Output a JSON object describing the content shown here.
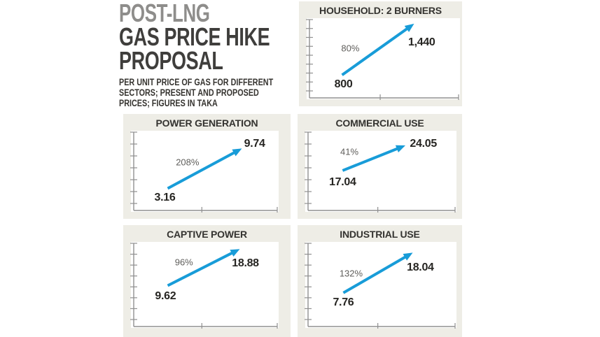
{
  "header": {
    "kicker": "POST-LNG",
    "title_line1": "GAS PRICE HIKE",
    "title_line2": "PROPOSAL",
    "subtitle_line1": "PER UNIT PRICE OF GAS FOR DIFFERENT",
    "subtitle_line2": "SECTORS; PRESENT AND PROPOSED",
    "subtitle_line3": "PRICES; FIGURES IN TAKA"
  },
  "colors": {
    "arrow": "#189cd8",
    "card_bg": "#eeede6",
    "axis": "#909090",
    "kicker_text": "#8e8d8b",
    "title_text": "#3f3e3c",
    "value_text": "#262522",
    "pct_text": "#5f5e5b"
  },
  "chart_data": [
    {
      "type": "line",
      "title": "HOUSEHOLD: 2 BURNERS",
      "present_price": 800,
      "proposed_price": 1440,
      "increase_pct": 80,
      "start_label": "800",
      "end_label": "1,440",
      "pct_label": "80%",
      "unit": "Taka",
      "ticks_left": 9,
      "arrow": {
        "x1": 23.1,
        "y1": 70.0,
        "x2": 70.1,
        "y2": 6.8
      },
      "labels": {
        "start": {
          "x": 24.0,
          "y": 82.0
        },
        "end": {
          "x": 75.0,
          "y": 30.0
        },
        "pct": {
          "x": 28.5,
          "y": 37.0
        }
      }
    },
    {
      "type": "line",
      "title": "POWER GENERATION",
      "present_price": 3.16,
      "proposed_price": 9.74,
      "increase_pct": 208,
      "start_label": "3.16",
      "end_label": "9.74",
      "pct_label": "208%",
      "unit": "Taka",
      "ticks_left": 7,
      "arrow": {
        "x1": 24.9,
        "y1": 71.1,
        "x2": 75.1,
        "y2": 21.9
      },
      "labels": {
        "start": {
          "x": 23.0,
          "y": 82.5
        },
        "end": {
          "x": 83.7,
          "y": 16.7
        },
        "pct": {
          "x": 38.3,
          "y": 38.6
        }
      }
    },
    {
      "type": "line",
      "title": "COMMERCIAL USE",
      "present_price": 17.04,
      "proposed_price": 24.05,
      "increase_pct": 41,
      "start_label": "17.04",
      "end_label": "24.05",
      "pct_label": "41%",
      "unit": "Taka",
      "ticks_left": 7,
      "arrow": {
        "x1": 24.7,
        "y1": 49.1,
        "x2": 66.2,
        "y2": 18.1
      },
      "labels": {
        "start": {
          "x": 24.7,
          "y": 63.8
        },
        "end": {
          "x": 78.1,
          "y": 16.4
        },
        "pct": {
          "x": 29.2,
          "y": 25.9
        }
      }
    },
    {
      "type": "line",
      "title": "CAPTIVE POWER",
      "present_price": 9.62,
      "proposed_price": 18.88,
      "increase_pct": 96,
      "start_label": "9.62",
      "end_label": "18.88",
      "pct_label": "96%",
      "unit": "Taka",
      "ticks_left": 8,
      "arrow": {
        "x1": 24.9,
        "y1": 50.8,
        "x2": 73.7,
        "y2": 8.3
      },
      "labels": {
        "start": {
          "x": 23.4,
          "y": 63.3
        },
        "end": {
          "x": 77.5,
          "y": 25.0
        },
        "pct": {
          "x": 35.9,
          "y": 23.3
        }
      }
    },
    {
      "type": "line",
      "title": "INDUSTRIAL USE",
      "present_price": 7.76,
      "proposed_price": 18.04,
      "increase_pct": 132,
      "start_label": "7.76",
      "end_label": "18.04",
      "pct_label": "132%",
      "unit": "Taka",
      "ticks_left": 8,
      "arrow": {
        "x1": 25.2,
        "y1": 59.2,
        "x2": 71.1,
        "y2": 12.5
      },
      "labels": {
        "start": {
          "x": 25.2,
          "y": 70.8
        },
        "end": {
          "x": 76.1,
          "y": 30.0
        },
        "pct": {
          "x": 30.3,
          "y": 36.7
        }
      }
    }
  ]
}
